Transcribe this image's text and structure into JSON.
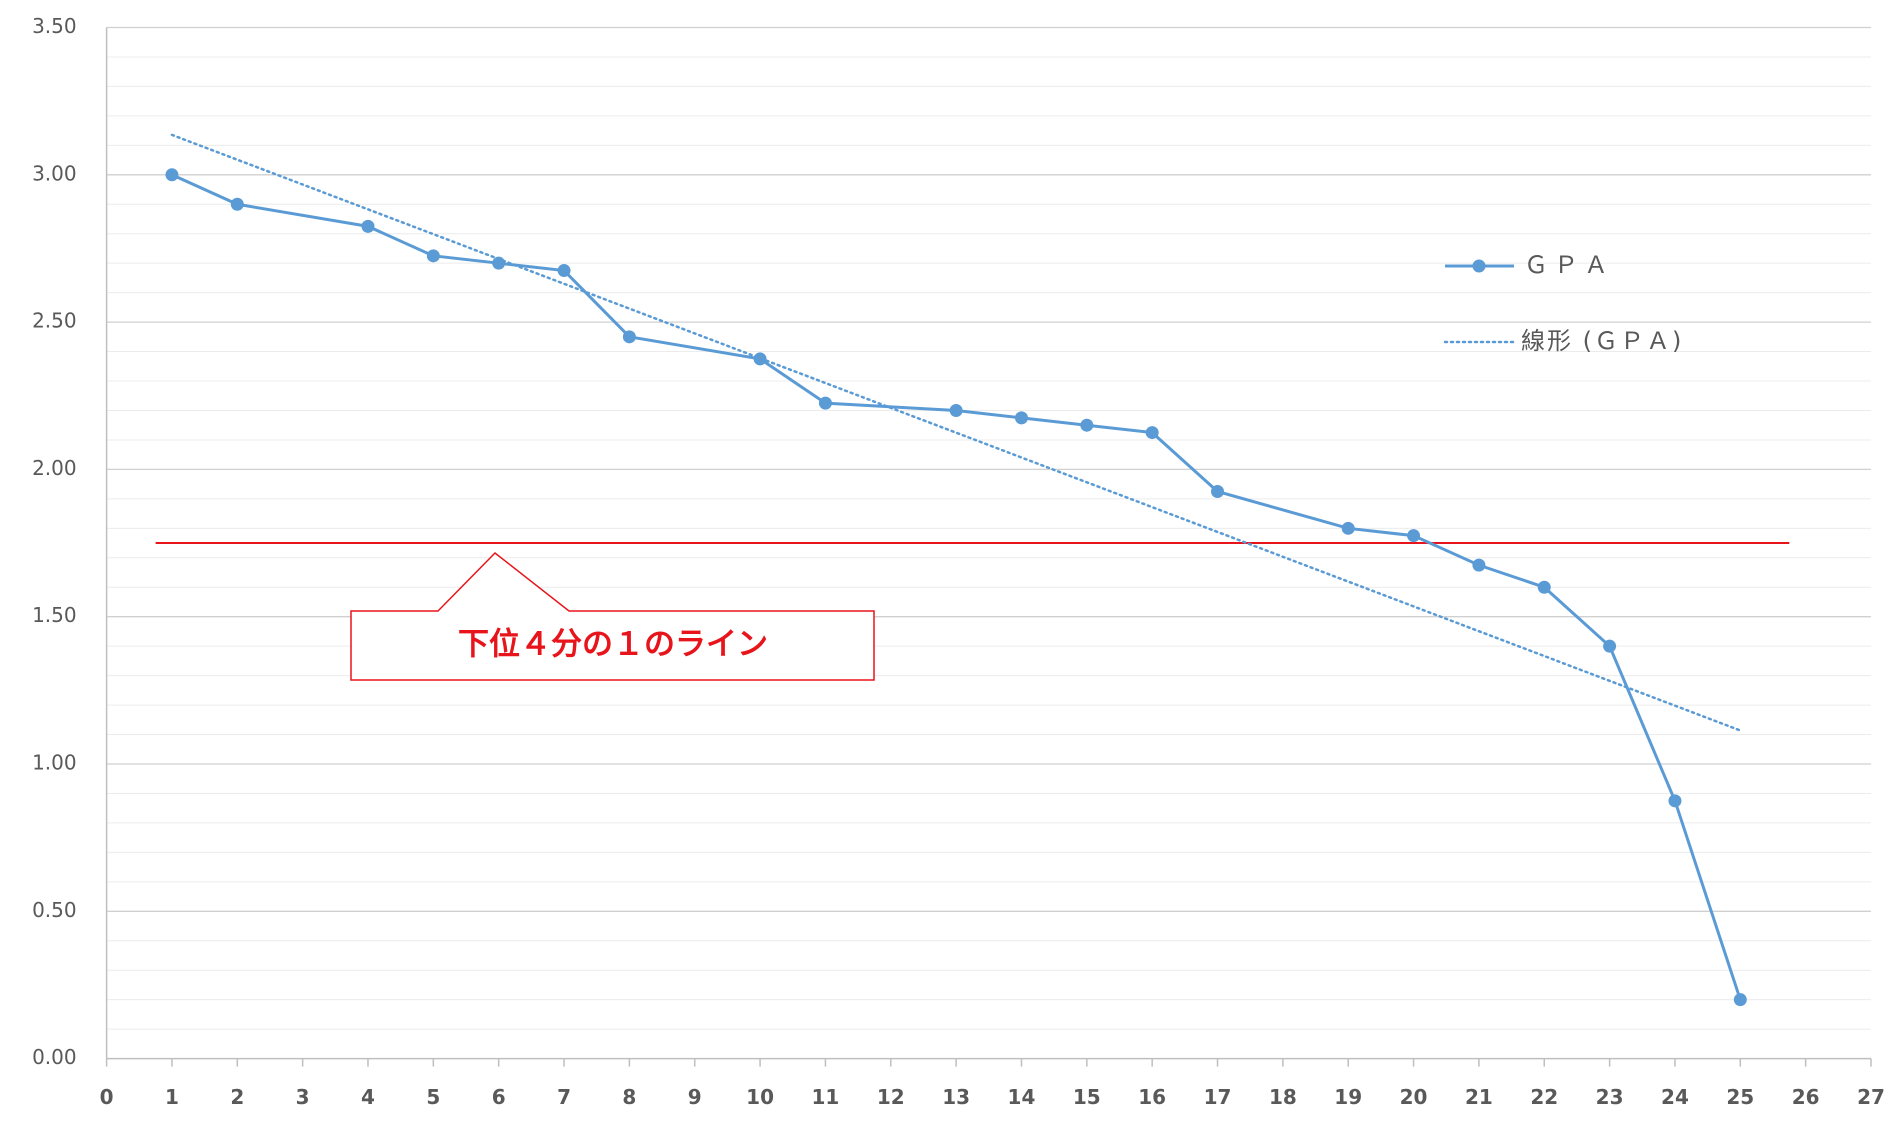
{
  "chart_data": {
    "type": "line",
    "x": [
      1,
      2,
      4,
      5,
      6,
      7,
      8,
      10,
      11,
      13,
      14,
      15,
      16,
      17,
      19,
      20,
      21,
      22,
      23,
      24,
      25
    ],
    "series": [
      {
        "name": "ＧＰＡ",
        "color": "#5b9bd5",
        "values": [
          3.0,
          2.9,
          2.825,
          2.725,
          2.7,
          2.675,
          2.45,
          2.375,
          2.225,
          2.2,
          2.175,
          2.15,
          2.125,
          1.925,
          1.8,
          1.775,
          1.675,
          1.6,
          1.4,
          0.875,
          0.2
        ]
      }
    ],
    "trendline": {
      "name": "線形 (ＧＰＡ)",
      "type": "linear",
      "color": "#5b9bd5"
    },
    "reference_line": {
      "value": 1.75,
      "label": "下位４分の１のライン",
      "color": "#e8141b"
    },
    "xlim": [
      0,
      27
    ],
    "xticks": [
      0,
      1,
      2,
      3,
      4,
      5,
      6,
      7,
      8,
      9,
      10,
      11,
      12,
      13,
      14,
      15,
      16,
      17,
      18,
      19,
      20,
      21,
      22,
      23,
      24,
      25,
      26,
      27
    ],
    "ylim": [
      0,
      3.5
    ],
    "yticks": [
      {
        "value": 0,
        "label": "0.00"
      },
      {
        "value": 0.5,
        "label": "0.50"
      },
      {
        "value": 1,
        "label": "1.00"
      },
      {
        "value": 1.5,
        "label": "1.50"
      },
      {
        "value": 2,
        "label": "2.00"
      },
      {
        "value": 2.5,
        "label": "2.50"
      },
      {
        "value": 3,
        "label": "3.00"
      },
      {
        "value": 3.5,
        "label": "3.50"
      }
    ],
    "grid": true,
    "legend": "right"
  }
}
